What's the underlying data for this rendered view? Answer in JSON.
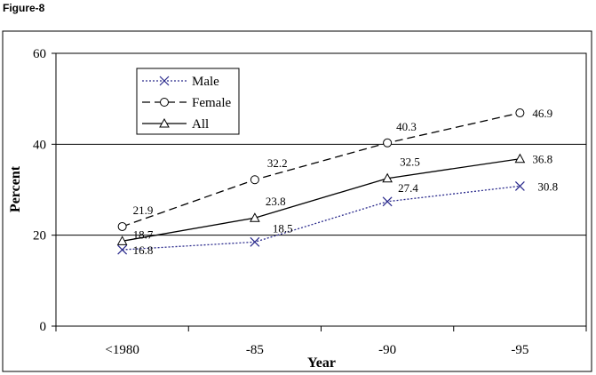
{
  "figure_label": "Figure-8",
  "chart_data": {
    "type": "line",
    "title": "",
    "xlabel": "Year",
    "ylabel": "Percent",
    "categories": [
      "<1980",
      "-85",
      "-90",
      "-95"
    ],
    "ylim": [
      0,
      60
    ],
    "yticks": [
      "0",
      "20",
      "40",
      "60"
    ],
    "grid": "horizontal",
    "legend_position": "top-left",
    "series": [
      {
        "name": "Male",
        "values": [
          16.8,
          18.5,
          27.4,
          30.8
        ],
        "labels": [
          "16.8",
          "18.5",
          "27.4",
          "30.8"
        ],
        "color": "#2a2a8c",
        "dash": "dotted",
        "marker": "x"
      },
      {
        "name": "Female",
        "values": [
          21.9,
          32.2,
          40.3,
          46.9
        ],
        "labels": [
          "21.9",
          "32.2",
          "40.3",
          "46.9"
        ],
        "color": "#000000",
        "dash": "dashed",
        "marker": "circle"
      },
      {
        "name": "All",
        "values": [
          18.7,
          23.8,
          32.5,
          36.8
        ],
        "labels": [
          "18.7",
          "23.8",
          "32.5",
          "36.8"
        ],
        "color": "#000000",
        "dash": "solid",
        "marker": "triangle"
      }
    ]
  }
}
